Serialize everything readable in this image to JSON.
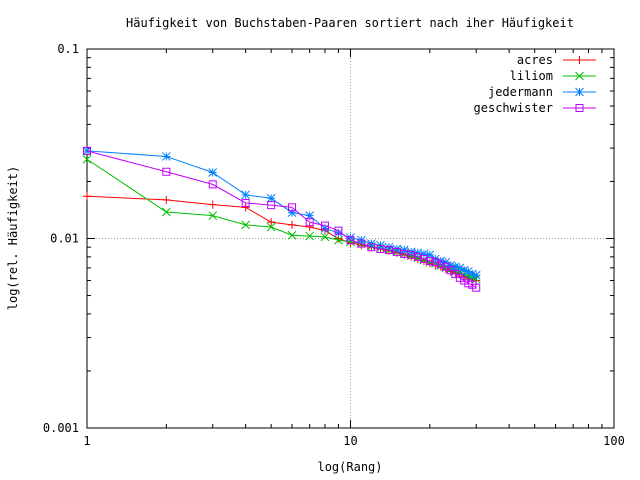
{
  "chart_data": {
    "type": "line",
    "title": "Häufigkeit von Buchstaben-Paaren sortiert nach iher Häufigkeit",
    "xlabel": "log(Rang)",
    "ylabel": "log(rel. Häufigkeit)",
    "xscale": "log",
    "yscale": "log",
    "xlim": [
      1,
      100
    ],
    "ylim": [
      0.001,
      0.1
    ],
    "xticks": [
      {
        "value": 1,
        "label": "1"
      },
      {
        "value": 10,
        "label": "10"
      },
      {
        "value": 100,
        "label": "100"
      }
    ],
    "yticks": [
      {
        "value": 0.001,
        "label": "0.001"
      },
      {
        "value": 0.01,
        "label": "0.01"
      },
      {
        "value": 0.1,
        "label": "0.1"
      }
    ],
    "grid": "major ticks, dotted",
    "legend_position": "top-right",
    "series": [
      {
        "name": "acres",
        "color": "#ff0000",
        "marker": "plus",
        "x": [
          1,
          2,
          3,
          4,
          5,
          6,
          7,
          8,
          9,
          10,
          11,
          12,
          13,
          14,
          15,
          16,
          17,
          18,
          19,
          20,
          21,
          22,
          23,
          24,
          25,
          26,
          27,
          28,
          29,
          30
        ],
        "y": [
          0.0167,
          0.016,
          0.0151,
          0.0146,
          0.0122,
          0.0118,
          0.0115,
          0.011,
          0.01,
          0.0095,
          0.0092,
          0.009,
          0.0088,
          0.0086,
          0.0084,
          0.0082,
          0.008,
          0.0078,
          0.0076,
          0.0074,
          0.0072,
          0.0071,
          0.0069,
          0.0067,
          0.0066,
          0.0065,
          0.0063,
          0.0062,
          0.0061,
          0.006
        ]
      },
      {
        "name": "liliom",
        "color": "#00c000",
        "marker": "cross",
        "x": [
          1,
          2,
          3,
          4,
          5,
          6,
          7,
          8,
          9,
          10,
          11,
          12,
          13,
          14,
          15,
          16,
          17,
          18,
          19,
          20,
          21,
          22,
          23,
          24,
          25,
          26,
          27,
          28,
          29,
          30
        ],
        "y": [
          0.0262,
          0.0138,
          0.0132,
          0.0118,
          0.0115,
          0.0104,
          0.0103,
          0.0102,
          0.0098,
          0.0096,
          0.0094,
          0.0091,
          0.0089,
          0.0087,
          0.0085,
          0.0083,
          0.0081,
          0.0079,
          0.0077,
          0.0075,
          0.0074,
          0.0072,
          0.007,
          0.0069,
          0.0067,
          0.0066,
          0.0064,
          0.0063,
          0.0062,
          0.0061
        ]
      },
      {
        "name": "jedermann",
        "color": "#0080ff",
        "marker": "star",
        "x": [
          1,
          2,
          3,
          4,
          5,
          6,
          7,
          8,
          9,
          10,
          11,
          12,
          13,
          14,
          15,
          16,
          17,
          18,
          19,
          20,
          21,
          22,
          23,
          24,
          25,
          26,
          27,
          28,
          29,
          30
        ],
        "y": [
          0.029,
          0.0271,
          0.0223,
          0.017,
          0.0163,
          0.0137,
          0.0132,
          0.0113,
          0.0107,
          0.0101,
          0.0098,
          0.0094,
          0.0092,
          0.009,
          0.0088,
          0.0087,
          0.0085,
          0.0084,
          0.0083,
          0.0082,
          0.0078,
          0.0076,
          0.0075,
          0.0072,
          0.0071,
          0.007,
          0.0068,
          0.0067,
          0.0065,
          0.0064
        ]
      },
      {
        "name": "geschwister",
        "color": "#c000ff",
        "marker": "square",
        "x": [
          1,
          2,
          3,
          4,
          5,
          6,
          7,
          8,
          9,
          10,
          11,
          12,
          13,
          14,
          15,
          16,
          17,
          18,
          19,
          20,
          21,
          22,
          23,
          24,
          25,
          26,
          27,
          28,
          29,
          30
        ],
        "y": [
          0.029,
          0.0225,
          0.0193,
          0.0154,
          0.015,
          0.0146,
          0.0122,
          0.0117,
          0.011,
          0.0098,
          0.0094,
          0.009,
          0.0088,
          0.0087,
          0.0085,
          0.0083,
          0.0082,
          0.008,
          0.0078,
          0.0076,
          0.0075,
          0.0073,
          0.0071,
          0.0068,
          0.0065,
          0.0062,
          0.006,
          0.0058,
          0.0057,
          0.0055
        ]
      }
    ]
  }
}
